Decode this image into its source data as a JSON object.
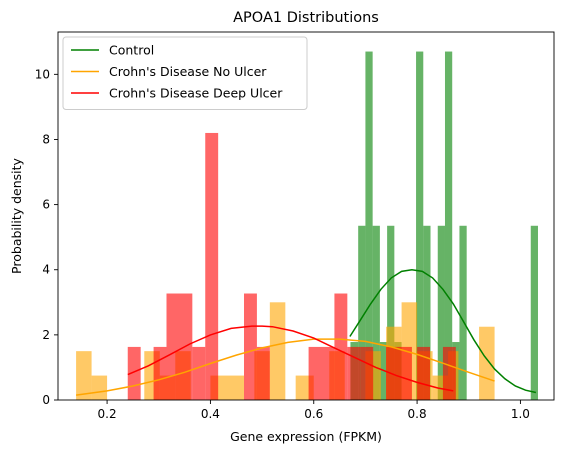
{
  "chart_data": {
    "type": "histogram",
    "title": "APOA1 Distributions",
    "xlabel": "Gene expression (FPKM)",
    "ylabel": "Probability density",
    "xlim": [
      0.105,
      1.065
    ],
    "ylim": [
      0,
      11.3
    ],
    "xticks": [
      0.2,
      0.4,
      0.6,
      0.8,
      1.0
    ],
    "xtick_labels": [
      "0.2",
      "0.4",
      "0.6",
      "0.8",
      "1.0"
    ],
    "yticks": [
      0,
      2,
      4,
      6,
      8,
      10
    ],
    "ytick_labels": [
      "0",
      "2",
      "4",
      "6",
      "8",
      "10"
    ],
    "legend_position": "top-left",
    "series": [
      {
        "name": "Control",
        "color": "#008000",
        "bar_alpha": 0.6,
        "bars": [
          {
            "x0": 0.671,
            "x1": 0.686,
            "y": 1.78
          },
          {
            "x0": 0.686,
            "x1": 0.7,
            "y": 5.35
          },
          {
            "x0": 0.7,
            "x1": 0.714,
            "y": 10.7
          },
          {
            "x0": 0.714,
            "x1": 0.728,
            "y": 5.35
          },
          {
            "x0": 0.728,
            "x1": 0.742,
            "y": 1.78
          },
          {
            "x0": 0.742,
            "x1": 0.756,
            "y": 5.35
          },
          {
            "x0": 0.756,
            "x1": 0.77,
            "y": 1.78
          },
          {
            "x0": 0.798,
            "x1": 0.812,
            "y": 10.7
          },
          {
            "x0": 0.812,
            "x1": 0.826,
            "y": 5.35
          },
          {
            "x0": 0.84,
            "x1": 0.854,
            "y": 5.35
          },
          {
            "x0": 0.854,
            "x1": 0.868,
            "y": 10.7
          },
          {
            "x0": 0.868,
            "x1": 0.882,
            "y": 1.78
          },
          {
            "x0": 0.882,
            "x1": 0.896,
            "y": 5.35
          },
          {
            "x0": 1.02,
            "x1": 1.034,
            "y": 5.35
          }
        ],
        "curve": {
          "x": [
            0.67,
            0.69,
            0.71,
            0.73,
            0.75,
            0.77,
            0.79,
            0.81,
            0.83,
            0.85,
            0.87,
            0.89,
            0.91,
            0.93,
            0.95,
            0.97,
            0.99,
            1.01,
            1.03
          ],
          "y": [
            1.95,
            2.45,
            2.95,
            3.4,
            3.75,
            3.95,
            4.0,
            3.95,
            3.75,
            3.4,
            2.95,
            2.4,
            1.85,
            1.35,
            0.95,
            0.65,
            0.43,
            0.3,
            0.23
          ]
        }
      },
      {
        "name": "Crohn's Disease No Ulcer",
        "color": "#ffa500",
        "bar_alpha": 0.6,
        "bars": [
          {
            "x0": 0.14,
            "x1": 0.17,
            "y": 1.5
          },
          {
            "x0": 0.17,
            "x1": 0.2,
            "y": 0.75
          },
          {
            "x0": 0.272,
            "x1": 0.302,
            "y": 1.5
          },
          {
            "x0": 0.302,
            "x1": 0.332,
            "y": 0.75
          },
          {
            "x0": 0.332,
            "x1": 0.362,
            "y": 1.5
          },
          {
            "x0": 0.4,
            "x1": 0.465,
            "y": 0.75
          },
          {
            "x0": 0.485,
            "x1": 0.515,
            "y": 1.5
          },
          {
            "x0": 0.515,
            "x1": 0.545,
            "y": 3.0
          },
          {
            "x0": 0.565,
            "x1": 0.6,
            "y": 0.75
          },
          {
            "x0": 0.63,
            "x1": 0.66,
            "y": 1.5
          },
          {
            "x0": 0.7,
            "x1": 0.73,
            "y": 1.5
          },
          {
            "x0": 0.74,
            "x1": 0.77,
            "y": 2.25
          },
          {
            "x0": 0.77,
            "x1": 0.8,
            "y": 3.0
          },
          {
            "x0": 0.8,
            "x1": 0.83,
            "y": 1.5
          },
          {
            "x0": 0.83,
            "x1": 0.86,
            "y": 0.75
          },
          {
            "x0": 0.86,
            "x1": 0.88,
            "y": 1.5
          },
          {
            "x0": 0.92,
            "x1": 0.95,
            "y": 2.25
          }
        ],
        "curve": {
          "x": [
            0.14,
            0.2,
            0.25,
            0.3,
            0.35,
            0.4,
            0.45,
            0.5,
            0.55,
            0.6,
            0.65,
            0.7,
            0.75,
            0.8,
            0.85,
            0.9,
            0.95
          ],
          "y": [
            0.15,
            0.28,
            0.43,
            0.62,
            0.85,
            1.12,
            1.38,
            1.6,
            1.77,
            1.87,
            1.87,
            1.8,
            1.63,
            1.4,
            1.13,
            0.85,
            0.58
          ]
        }
      },
      {
        "name": "Crohn's Disease Deep Ulcer",
        "color": "#ff0000",
        "bar_alpha": 0.6,
        "bars": [
          {
            "x0": 0.24,
            "x1": 0.265,
            "y": 1.63
          },
          {
            "x0": 0.29,
            "x1": 0.315,
            "y": 1.63
          },
          {
            "x0": 0.315,
            "x1": 0.365,
            "y": 3.27
          },
          {
            "x0": 0.365,
            "x1": 0.39,
            "y": 1.63
          },
          {
            "x0": 0.39,
            "x1": 0.415,
            "y": 8.2
          },
          {
            "x0": 0.465,
            "x1": 0.49,
            "y": 3.27
          },
          {
            "x0": 0.49,
            "x1": 0.515,
            "y": 1.63
          },
          {
            "x0": 0.59,
            "x1": 0.615,
            "y": 1.63
          },
          {
            "x0": 0.615,
            "x1": 0.64,
            "y": 1.63
          },
          {
            "x0": 0.64,
            "x1": 0.665,
            "y": 3.27
          },
          {
            "x0": 0.665,
            "x1": 0.69,
            "y": 1.63
          },
          {
            "x0": 0.69,
            "x1": 0.715,
            "y": 1.63
          },
          {
            "x0": 0.74,
            "x1": 0.765,
            "y": 1.63
          },
          {
            "x0": 0.765,
            "x1": 0.79,
            "y": 1.63
          },
          {
            "x0": 0.8,
            "x1": 0.825,
            "y": 1.63
          },
          {
            "x0": 0.85,
            "x1": 0.875,
            "y": 1.63
          }
        ],
        "curve": {
          "x": [
            0.24,
            0.28,
            0.32,
            0.36,
            0.4,
            0.44,
            0.48,
            0.5,
            0.52,
            0.56,
            0.6,
            0.64,
            0.68,
            0.72,
            0.76,
            0.8,
            0.84,
            0.87
          ],
          "y": [
            0.78,
            1.05,
            1.38,
            1.72,
            2.0,
            2.2,
            2.27,
            2.27,
            2.25,
            2.12,
            1.9,
            1.6,
            1.3,
            1.0,
            0.75,
            0.54,
            0.37,
            0.28
          ]
        }
      }
    ]
  }
}
